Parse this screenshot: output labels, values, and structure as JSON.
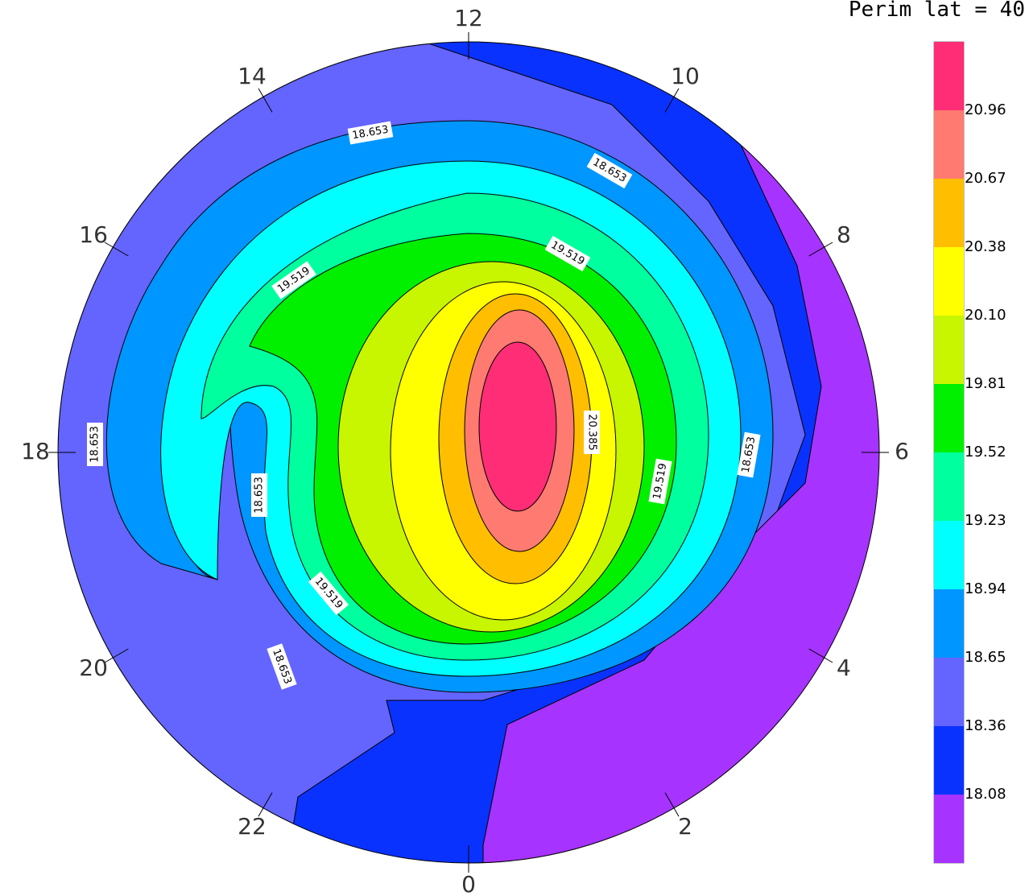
{
  "title": "Perim lat =  40",
  "hour_labels": [
    "12",
    "10",
    "8",
    "6",
    "4",
    "2",
    "0",
    "22",
    "20",
    "18",
    "16",
    "14"
  ],
  "colorbar": {
    "colors": [
      "#ff2d75",
      "#ff7a70",
      "#ffbe00",
      "#ffff00",
      "#c8f500",
      "#00f000",
      "#00ff9e",
      "#00ffff",
      "#0096ff",
      "#6464ff",
      "#0a32ff",
      "#a633ff"
    ],
    "labels": [
      "20.96",
      "20.67",
      "20.38",
      "20.10",
      "19.81",
      "19.52",
      "19.23",
      "18.94",
      "18.65",
      "18.36",
      "18.08"
    ]
  },
  "contour_labels": [
    "18.653",
    "18.653",
    "19.519",
    "19.519",
    "20.385",
    "19.519",
    "18.653",
    "18.653",
    "18.653",
    "19.519",
    "18.653"
  ]
}
